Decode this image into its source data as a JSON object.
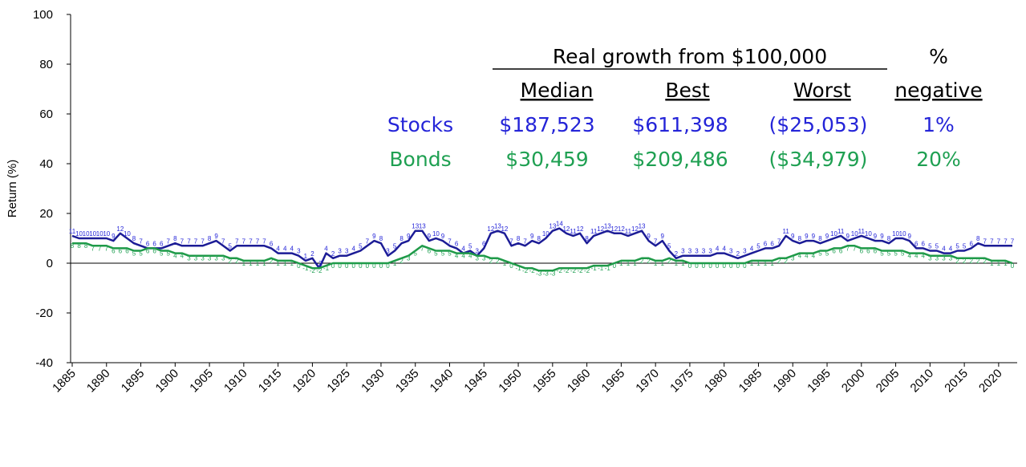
{
  "chart_data": {
    "type": "line",
    "y_label": "Return (%)",
    "ylim": [
      -40,
      100
    ],
    "yticks": [
      -40,
      -20,
      0,
      20,
      40,
      60,
      80,
      100
    ],
    "xlim": [
      1885,
      2022
    ],
    "xticks": [
      1885,
      1890,
      1895,
      1900,
      1905,
      1910,
      1915,
      1920,
      1925,
      1930,
      1935,
      1940,
      1945,
      1950,
      1955,
      1960,
      1965,
      1970,
      1975,
      1980,
      1985,
      1990,
      1995,
      2000,
      2005,
      2010,
      2015,
      2020
    ],
    "x": [
      1885,
      1886,
      1887,
      1888,
      1889,
      1890,
      1891,
      1892,
      1893,
      1894,
      1895,
      1896,
      1897,
      1898,
      1899,
      1900,
      1901,
      1902,
      1903,
      1904,
      1905,
      1906,
      1907,
      1908,
      1909,
      1910,
      1911,
      1912,
      1913,
      1914,
      1915,
      1916,
      1917,
      1918,
      1919,
      1920,
      1921,
      1922,
      1923,
      1924,
      1925,
      1926,
      1927,
      1928,
      1929,
      1930,
      1931,
      1932,
      1933,
      1934,
      1935,
      1936,
      1937,
      1938,
      1939,
      1940,
      1941,
      1942,
      1943,
      1944,
      1945,
      1946,
      1947,
      1948,
      1949,
      1950,
      1951,
      1952,
      1953,
      1954,
      1955,
      1956,
      1957,
      1958,
      1959,
      1960,
      1961,
      1962,
      1963,
      1964,
      1965,
      1966,
      1967,
      1968,
      1969,
      1970,
      1971,
      1972,
      1973,
      1974,
      1975,
      1976,
      1977,
      1978,
      1979,
      1980,
      1981,
      1982,
      1983,
      1984,
      1985,
      1986,
      1987,
      1988,
      1989,
      1990,
      1991,
      1992,
      1993,
      1994,
      1995,
      1996,
      1997,
      1998,
      1999,
      2000,
      2001,
      2002,
      2003,
      2004,
      2005,
      2006,
      2007,
      2008,
      2009,
      2010,
      2011,
      2012,
      2013,
      2014,
      2015,
      2016,
      2017,
      2018,
      2019,
      2020,
      2021,
      2022
    ],
    "series": [
      {
        "name": "Stocks",
        "color": "#2424d8",
        "line_color": "#1c1c96",
        "values": [
          11,
          10,
          10,
          10,
          10,
          10,
          9,
          12,
          10,
          8,
          7,
          6,
          6,
          6,
          7,
          8,
          7,
          7,
          7,
          7,
          8,
          9,
          7,
          5,
          7,
          7,
          7,
          7,
          7,
          6,
          4,
          4,
          4,
          3,
          1,
          2,
          -2,
          4,
          2,
          3,
          3,
          4,
          5,
          7,
          9,
          8,
          3,
          5,
          8,
          9,
          13,
          13,
          9,
          10,
          9,
          7,
          6,
          4,
          5,
          3,
          6,
          12,
          13,
          12,
          7,
          8,
          7,
          9,
          8,
          10,
          13,
          14,
          12,
          11,
          12,
          8,
          11,
          12,
          13,
          12,
          12,
          11,
          12,
          13,
          9,
          7,
          9,
          5,
          2,
          3,
          3,
          3,
          3,
          3,
          4,
          4,
          3,
          2,
          3,
          4,
          5,
          6,
          6,
          7,
          11,
          9,
          8,
          9,
          9,
          8,
          9,
          10,
          11,
          9,
          10,
          11,
          10,
          9,
          9,
          8,
          10,
          10,
          9,
          6,
          6,
          5,
          5,
          4,
          4,
          5,
          5,
          6,
          8,
          7,
          7,
          7,
          7,
          7
        ],
        "summary": [
          "$187,523",
          "$611,398",
          "($25,053)",
          "1%"
        ]
      },
      {
        "name": "Bonds",
        "color": "#1fa052",
        "line_color": "#1f9a48",
        "values": [
          8,
          8,
          8,
          7,
          7,
          7,
          6,
          6,
          6,
          5,
          5,
          6,
          6,
          5,
          5,
          4,
          4,
          3,
          3,
          3,
          3,
          3,
          3,
          2,
          2,
          1,
          1,
          1,
          1,
          2,
          1,
          1,
          1,
          0,
          -1,
          -2,
          -2,
          -1,
          0,
          0,
          0,
          0,
          0,
          0,
          0,
          0,
          0,
          1,
          2,
          3,
          5,
          7,
          6,
          5,
          5,
          5,
          4,
          4,
          4,
          3,
          3,
          2,
          2,
          1,
          0,
          -1,
          -2,
          -2,
          -3,
          -3,
          -3,
          -2,
          -2,
          -2,
          -2,
          -2,
          -1,
          -1,
          -1,
          0,
          1,
          1,
          1,
          2,
          2,
          1,
          1,
          2,
          1,
          1,
          0,
          0,
          0,
          0,
          0,
          0,
          0,
          0,
          0,
          1,
          1,
          1,
          1,
          2,
          2,
          3,
          4,
          4,
          4,
          5,
          5,
          6,
          6,
          7,
          7,
          6,
          6,
          6,
          5,
          5,
          5,
          5,
          4,
          4,
          4,
          3,
          3,
          3,
          3,
          2,
          2,
          2,
          2,
          2,
          1,
          1,
          1,
          0
        ],
        "summary": [
          "$30,459",
          "$209,486",
          "($34,979)",
          "20%"
        ]
      }
    ],
    "table": {
      "group_header": "Real growth from $100,000",
      "pct_header": "%",
      "columns": [
        "Median",
        "Best",
        "Worst",
        "negative"
      ]
    }
  }
}
